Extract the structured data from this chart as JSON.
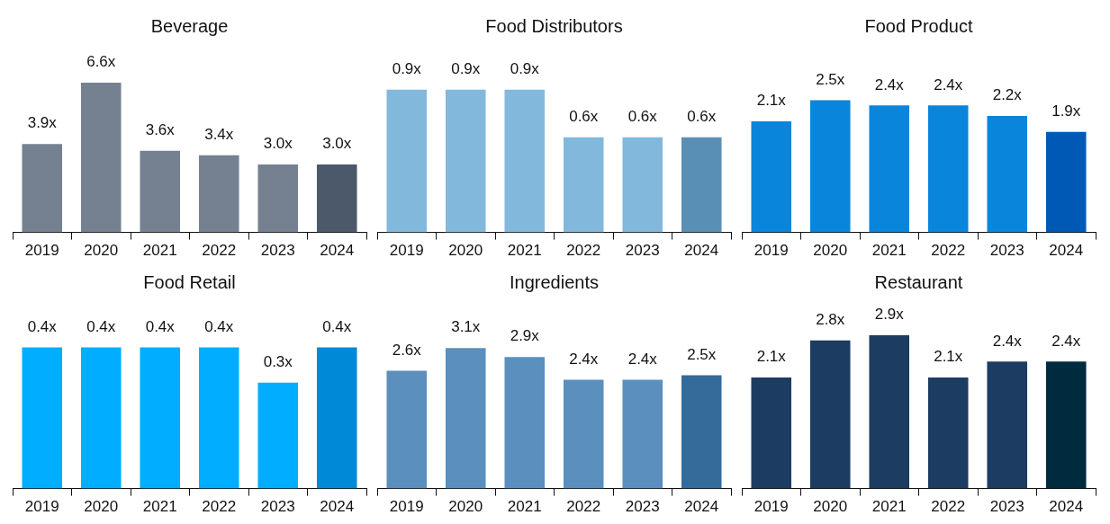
{
  "chart_data": [
    {
      "type": "bar",
      "title": "Beverage",
      "categories": [
        "2019",
        "2020",
        "2021",
        "2022",
        "2023",
        "2024"
      ],
      "values": [
        3.9,
        6.6,
        3.6,
        3.4,
        3.0,
        3.0
      ],
      "value_labels": [
        "3.9x",
        "6.6x",
        "3.6x",
        "3.4x",
        "3.0x",
        "3.0x"
      ],
      "colors": [
        "#758190",
        "#758190",
        "#758190",
        "#758190",
        "#758190",
        "#4b596b"
      ],
      "tick_labels": "x"
    },
    {
      "type": "bar",
      "title": "Food Distributors",
      "categories": [
        "2019",
        "2020",
        "2021",
        "2022",
        "2023",
        "2024"
      ],
      "values": [
        0.9,
        0.9,
        0.9,
        0.6,
        0.6,
        0.6
      ],
      "value_labels": [
        "0.9x",
        "0.9x",
        "0.9x",
        "0.6x",
        "0.6x",
        "0.6x"
      ],
      "colors": [
        "#82b8dc",
        "#82b8dc",
        "#82b8dc",
        "#82b8dc",
        "#82b8dc",
        "#5a8fb5"
      ],
      "tick_labels": "x"
    },
    {
      "type": "bar",
      "title": "Food Product",
      "categories": [
        "2019",
        "2020",
        "2021",
        "2022",
        "2023",
        "2024"
      ],
      "values": [
        2.1,
        2.5,
        2.4,
        2.4,
        2.2,
        1.9
      ],
      "value_labels": [
        "2.1x",
        "2.5x",
        "2.4x",
        "2.4x",
        "2.2x",
        "1.9x"
      ],
      "colors": [
        "#0a85dc",
        "#0a85dc",
        "#0a85dc",
        "#0a85dc",
        "#0a85dc",
        "#005ab5"
      ],
      "tick_labels": "x"
    },
    {
      "type": "bar",
      "title": "Food Retail",
      "categories": [
        "2019",
        "2020",
        "2021",
        "2022",
        "2023",
        "2024"
      ],
      "values": [
        0.4,
        0.4,
        0.4,
        0.4,
        0.3,
        0.4
      ],
      "value_labels": [
        "0.4x",
        "0.4x",
        "0.4x",
        "0.4x",
        "0.3x",
        "0.4x"
      ],
      "colors": [
        "#00adff",
        "#00adff",
        "#00adff",
        "#00adff",
        "#00adff",
        "#0089d6"
      ],
      "tick_labels": "x"
    },
    {
      "type": "bar",
      "title": "Ingredients",
      "categories": [
        "2019",
        "2020",
        "2021",
        "2022",
        "2023",
        "2024"
      ],
      "values": [
        2.6,
        3.1,
        2.9,
        2.4,
        2.4,
        2.5
      ],
      "value_labels": [
        "2.6x",
        "3.1x",
        "2.9x",
        "2.4x",
        "2.4x",
        "2.5x"
      ],
      "colors": [
        "#5a8fbe",
        "#5a8fbe",
        "#5a8fbe",
        "#5a8fbe",
        "#5a8fbe",
        "#336b9b"
      ],
      "tick_labels": "x"
    },
    {
      "type": "bar",
      "title": "Restaurant",
      "categories": [
        "2019",
        "2020",
        "2021",
        "2022",
        "2023",
        "2024"
      ],
      "values": [
        2.1,
        2.8,
        2.9,
        2.1,
        2.4,
        2.4
      ],
      "value_labels": [
        "2.1x",
        "2.8x",
        "2.9x",
        "2.1x",
        "2.4x",
        "2.4x"
      ],
      "colors": [
        "#1c3c62",
        "#1c3c62",
        "#1c3c62",
        "#1c3c62",
        "#1c3c62",
        "#002a3e"
      ],
      "tick_labels": "x"
    }
  ]
}
